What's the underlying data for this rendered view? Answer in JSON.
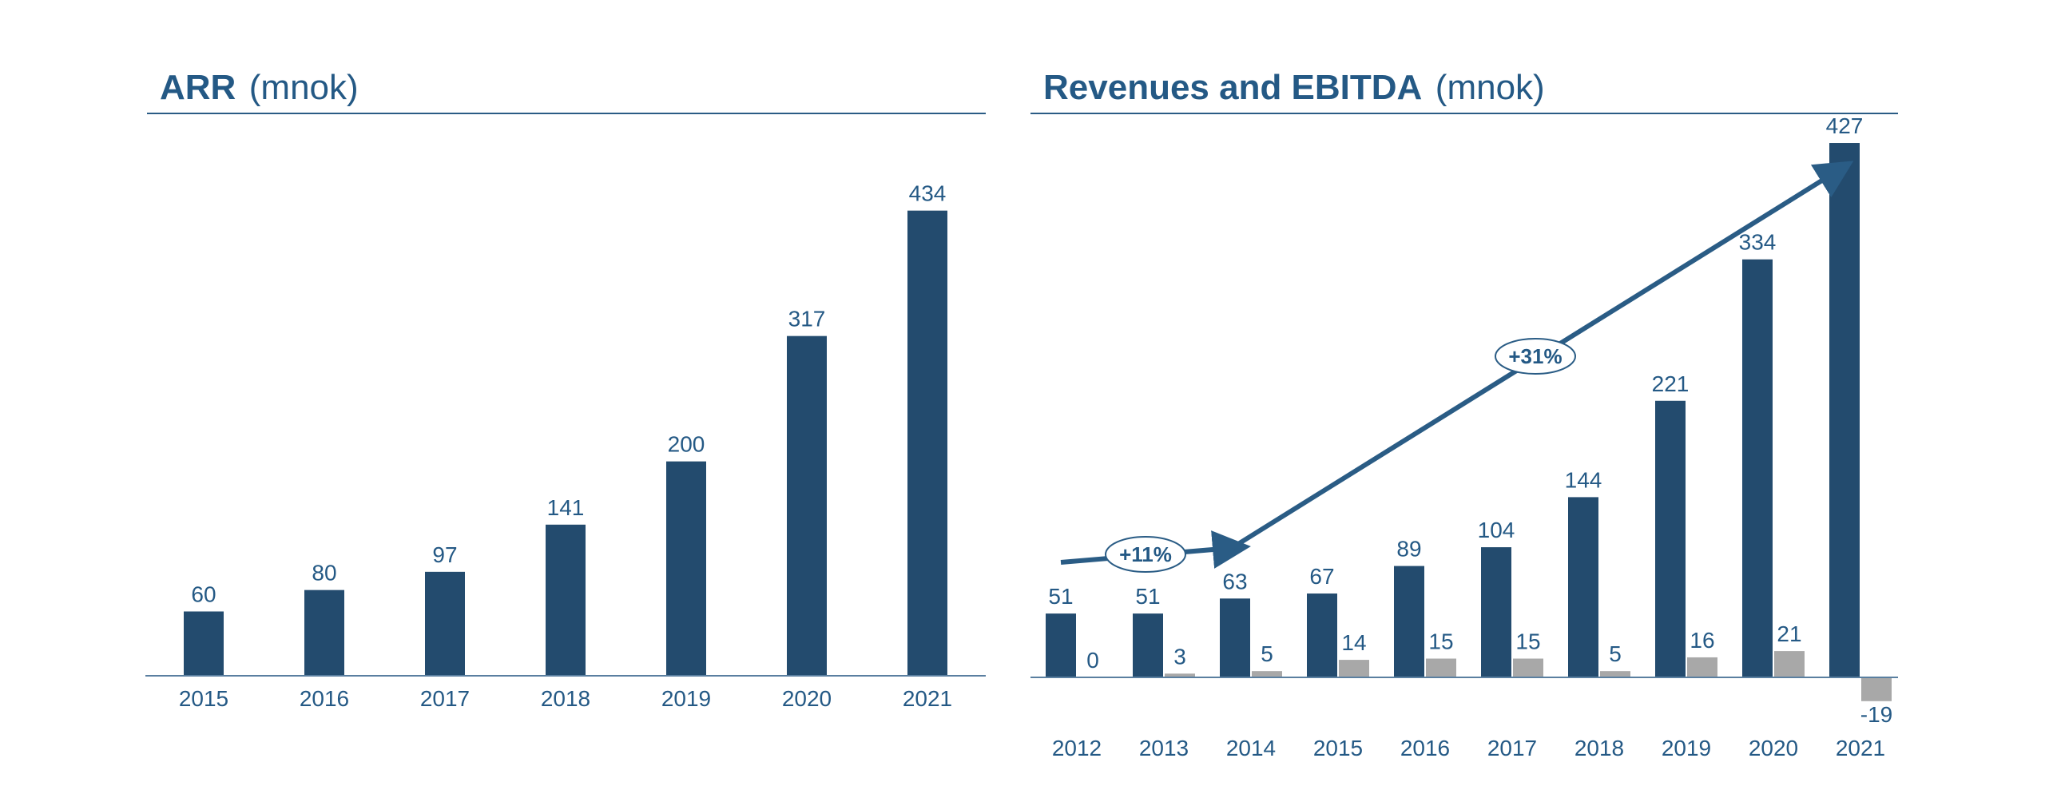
{
  "colors": {
    "primary": "#234B6E",
    "secondary": "#A8A8A8",
    "accent": "#2A5C85",
    "text": "#245985"
  },
  "chart_data": [
    {
      "type": "bar",
      "title_main": "ARR",
      "title_unit": "(mnok)",
      "categories": [
        "2015",
        "2016",
        "2017",
        "2018",
        "2019",
        "2020",
        "2021"
      ],
      "series": [
        {
          "name": "ARR",
          "values": [
            60,
            80,
            97,
            141,
            200,
            317,
            434
          ]
        }
      ],
      "ylim": [
        0,
        480
      ],
      "grid": false
    },
    {
      "type": "bar",
      "title_main": "Revenues and EBITDA",
      "title_unit": "(mnok)",
      "categories": [
        "2012",
        "2013",
        "2014",
        "2015",
        "2016",
        "2017",
        "2018",
        "2019",
        "2020",
        "2021"
      ],
      "series": [
        {
          "name": "Revenues",
          "values": [
            51,
            51,
            63,
            67,
            89,
            104,
            144,
            221,
            334,
            427
          ]
        },
        {
          "name": "EBITDA",
          "values": [
            0,
            3,
            5,
            14,
            15,
            15,
            5,
            16,
            21,
            -19
          ]
        }
      ],
      "ylim": [
        -25,
        480
      ],
      "grid": false,
      "annotations": [
        {
          "label": "+11%",
          "from": "2012",
          "to": "2014"
        },
        {
          "label": "+31%",
          "from": "2014",
          "to": "2021"
        }
      ]
    }
  ]
}
